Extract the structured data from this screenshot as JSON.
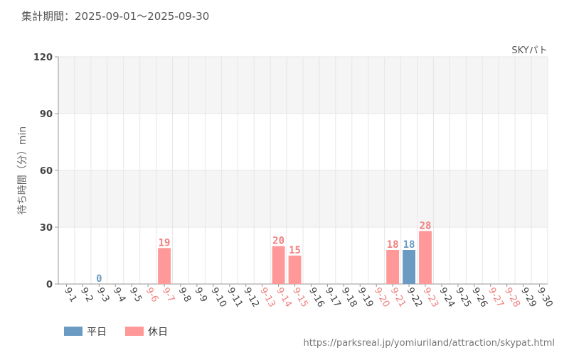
{
  "header": {
    "period": "集計期間：2025-09-01～2025-09-30"
  },
  "source_url": "https://parksreal.jp/yomiuriland/attraction/skypat.html",
  "colors": {
    "weekday": "#6b9bc3",
    "holiday": "#ff9999",
    "weekday_text": "#6b9bc3",
    "holiday_text": "#f08080",
    "tick_text": "#444444",
    "grid": "#e6e6e6",
    "band": "#f5f5f5"
  },
  "legend": [
    {
      "label": "平日",
      "type": "weekday"
    },
    {
      "label": "休日",
      "type": "holiday"
    }
  ],
  "chart_data": {
    "type": "bar",
    "subtitle": "SKYパト",
    "ylabel": "待ち時間（分）min",
    "ylim": [
      0,
      120
    ],
    "yticks": [
      0,
      30,
      60,
      90,
      120
    ],
    "grid": true,
    "legend_position": "bottom-left",
    "categories": [
      "9-1",
      "9-2",
      "9-3",
      "9-4",
      "9-5",
      "9-6",
      "9-7",
      "9-8",
      "9-9",
      "9-10",
      "9-11",
      "9-12",
      "9-13",
      "9-14",
      "9-15",
      "9-16",
      "9-17",
      "9-18",
      "9-19",
      "9-20",
      "9-21",
      "9-22",
      "9-23",
      "9-24",
      "9-25",
      "9-26",
      "9-27",
      "9-28",
      "9-29",
      "9-30"
    ],
    "values": [
      null,
      null,
      0,
      null,
      null,
      null,
      19,
      null,
      null,
      null,
      null,
      null,
      null,
      20,
      15,
      null,
      null,
      null,
      null,
      null,
      18,
      18,
      28,
      null,
      null,
      null,
      null,
      null,
      null,
      null
    ],
    "day_type": [
      "weekday",
      "weekday",
      "weekday",
      "weekday",
      "weekday",
      "holiday",
      "holiday",
      "weekday",
      "weekday",
      "weekday",
      "weekday",
      "weekday",
      "holiday",
      "holiday",
      "holiday",
      "weekday",
      "weekday",
      "weekday",
      "weekday",
      "holiday",
      "holiday",
      "weekday",
      "holiday",
      "weekday",
      "weekday",
      "weekday",
      "holiday",
      "holiday",
      "weekday",
      "weekday"
    ]
  }
}
